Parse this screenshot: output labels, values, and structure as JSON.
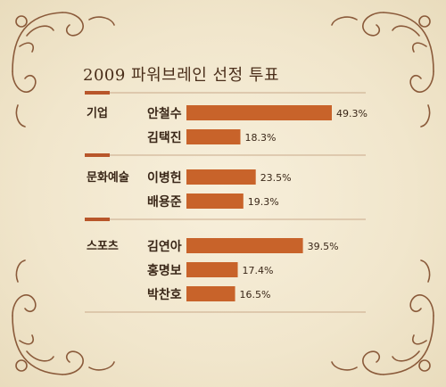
{
  "chart_data": {
    "type": "bar",
    "orientation": "horizontal",
    "title": "2009 파워브레인 선정 투표",
    "value_unit": "%",
    "xlim": [
      0,
      55
    ],
    "grid": false,
    "groups": [
      {
        "name": "기업",
        "items": [
          {
            "label": "안철수",
            "value": 49.3,
            "display": "49.3%"
          },
          {
            "label": "김택진",
            "value": 18.3,
            "display": "18.3%"
          }
        ]
      },
      {
        "name": "문화예술",
        "items": [
          {
            "label": "이병헌",
            "value": 23.5,
            "display": "23.5%"
          },
          {
            "label": "배용준",
            "value": 19.3,
            "display": "19.3%"
          }
        ]
      },
      {
        "name": "스포츠",
        "items": [
          {
            "label": "김연아",
            "value": 39.5,
            "display": "39.5%"
          },
          {
            "label": "홍명보",
            "value": 17.4,
            "display": "17.4%"
          },
          {
            "label": "박찬호",
            "value": 16.5,
            "display": "16.5%"
          }
        ]
      }
    ]
  },
  "colors": {
    "bar": "#c8632a",
    "separator_accent": "#b8562a",
    "separator_line": "#c9a98a",
    "ornament": "#8a5a3a"
  }
}
